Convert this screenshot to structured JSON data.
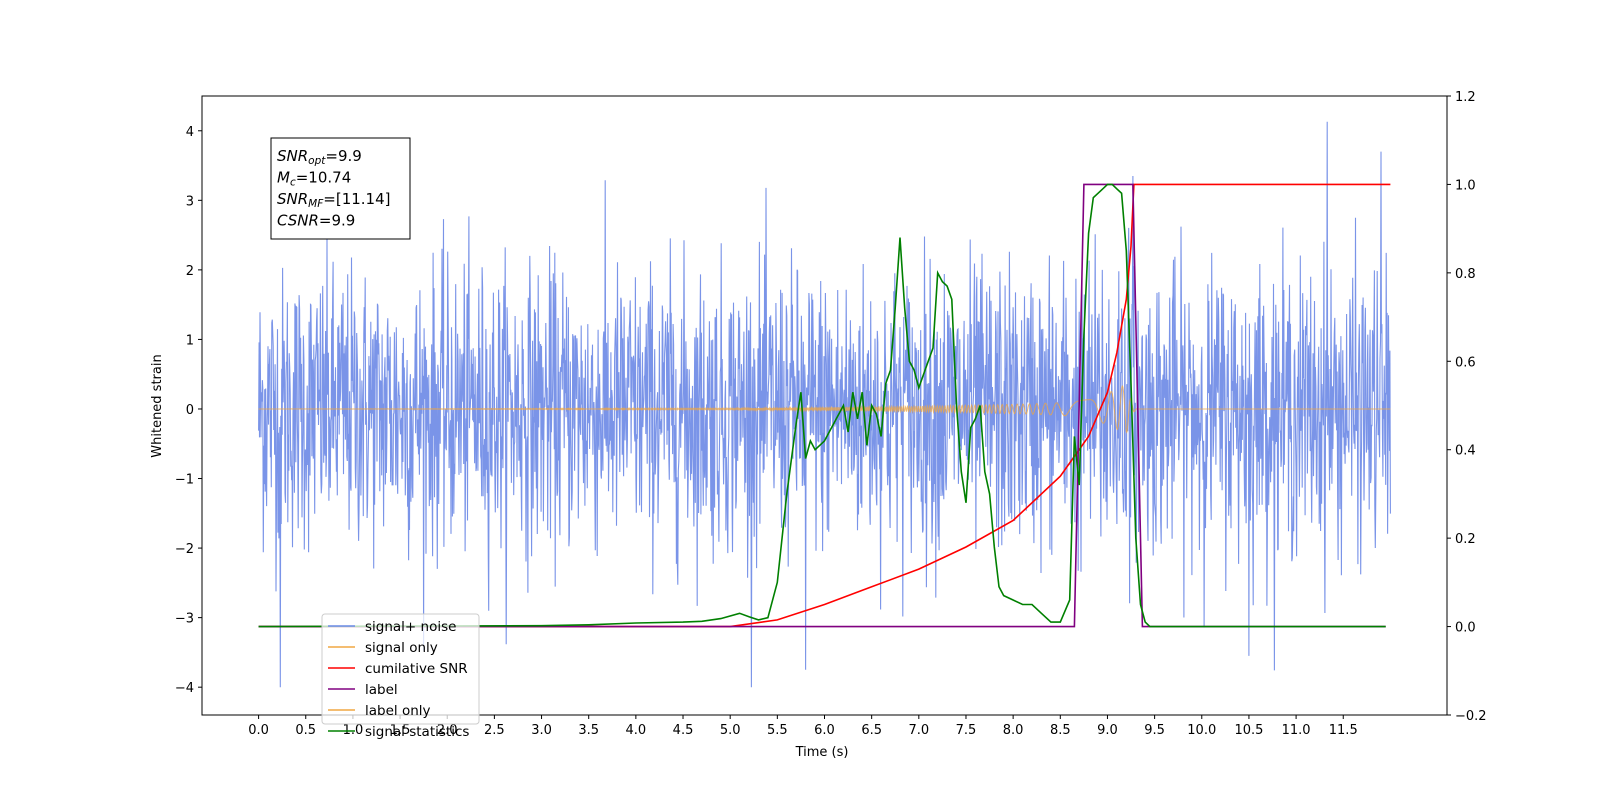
{
  "chart_data": {
    "type": "line",
    "xlabel": "Time (s)",
    "ylabel": "Whitened strain",
    "xlim": [
      -0.6,
      12.6
    ],
    "ylim": [
      -4.4,
      4.5
    ],
    "y2lim": [
      -0.2,
      1.2
    ],
    "x_ticks": [
      "0.0",
      "0.5",
      "1.0",
      "1.5",
      "2.0",
      "2.5",
      "3.0",
      "3.5",
      "4.0",
      "4.5",
      "5.0",
      "5.5",
      "6.0",
      "6.5",
      "7.0",
      "7.5",
      "8.0",
      "8.5",
      "9.0",
      "9.5",
      "10.0",
      "10.5",
      "11.0",
      "11.5"
    ],
    "y_ticks": [
      "4",
      "3",
      "2",
      "1",
      "0",
      "−1",
      "−2",
      "−3",
      "−4"
    ],
    "y2_ticks": [
      "1.2",
      "1.0",
      "0.8",
      "0.6",
      "0.4",
      "0.2",
      "0.0",
      "−0.2"
    ],
    "grid": false,
    "legend_position": "lower-left",
    "annotation": [
      {
        "sym": "SNR",
        "sub": "opt",
        "value": "=9.9"
      },
      {
        "sym": "M",
        "sub": "c",
        "value": "=10.74"
      },
      {
        "sym": "SNR",
        "sub": "MF",
        "value": "=[11.14]"
      },
      {
        "sym": "CSNR",
        "sub": "",
        "value": "=9.9"
      }
    ],
    "colors": {
      "noise": "#6b88e6",
      "signal": "#f0a742",
      "csnr": "#ff0000",
      "label": "#800080",
      "stats": "#008000"
    },
    "series": [
      {
        "name": "signal+ noise",
        "axis": "left",
        "color": "#6b88e6",
        "x_range": [
          0.0,
          12.0
        ],
        "y_range": [
          -4.0,
          4.13
        ],
        "notable_points": [
          [
            0.23,
            -4.0
          ],
          [
            11.33,
            4.13
          ],
          [
            5.8,
            -3.75
          ],
          [
            10.5,
            -3.55
          ],
          [
            11.9,
            3.7
          ],
          [
            9.27,
            3.35
          ]
        ]
      },
      {
        "name": "signal only",
        "axis": "left",
        "color": "#f0a742",
        "envelope": {
          "x": [
            0.0,
            5.0,
            6.0,
            7.0,
            8.0,
            8.5,
            8.8,
            9.0,
            9.2,
            9.25,
            9.3,
            12.0
          ],
          "amplitude": [
            0.0,
            0.02,
            0.05,
            0.09,
            0.15,
            0.2,
            0.3,
            0.5,
            0.8,
            0.3,
            0.0,
            0.0
          ]
        }
      },
      {
        "name": "cumilative SNR",
        "axis": "right",
        "color": "#ff0000",
        "x": [
          0.0,
          5.0,
          5.5,
          6.0,
          6.5,
          7.0,
          7.5,
          8.0,
          8.5,
          8.8,
          9.0,
          9.1,
          9.2,
          9.25,
          9.28,
          9.3,
          12.0
        ],
        "y": [
          0.0,
          0.0,
          0.015,
          0.05,
          0.09,
          0.13,
          0.18,
          0.24,
          0.34,
          0.43,
          0.53,
          0.62,
          0.74,
          0.86,
          1.0,
          1.0,
          1.0
        ]
      },
      {
        "name": "label",
        "axis": "right",
        "color": "#800080",
        "x": [
          0.0,
          8.65,
          8.75,
          9.27,
          9.37,
          11.95
        ],
        "y": [
          0.0,
          0.0,
          1.0,
          1.0,
          0.0,
          0.0
        ]
      },
      {
        "name": "signal statistics",
        "axis": "right",
        "color": "#008000",
        "x": [
          0.0,
          3.0,
          3.5,
          4.0,
          4.5,
          4.7,
          4.9,
          5.1,
          5.2,
          5.3,
          5.4,
          5.5,
          5.6,
          5.7,
          5.75,
          5.8,
          5.85,
          5.9,
          6.0,
          6.1,
          6.2,
          6.25,
          6.3,
          6.35,
          6.4,
          6.45,
          6.5,
          6.55,
          6.6,
          6.65,
          6.7,
          6.75,
          6.8,
          6.85,
          6.9,
          6.95,
          7.0,
          7.05,
          7.1,
          7.15,
          7.2,
          7.25,
          7.3,
          7.35,
          7.4,
          7.45,
          7.5,
          7.55,
          7.6,
          7.65,
          7.7,
          7.75,
          7.8,
          7.85,
          7.9,
          8.0,
          8.1,
          8.2,
          8.3,
          8.4,
          8.5,
          8.6,
          8.65,
          8.7,
          8.75,
          8.8,
          8.85,
          8.9,
          8.95,
          9.0,
          9.05,
          9.1,
          9.15,
          9.2,
          9.25,
          9.3,
          9.35,
          9.4,
          9.45,
          9.5,
          9.6,
          11.95
        ],
        "y": [
          0.0,
          0.002,
          0.004,
          0.008,
          0.01,
          0.012,
          0.018,
          0.03,
          0.022,
          0.015,
          0.02,
          0.1,
          0.3,
          0.46,
          0.53,
          0.38,
          0.42,
          0.4,
          0.42,
          0.46,
          0.5,
          0.44,
          0.53,
          0.47,
          0.53,
          0.41,
          0.5,
          0.48,
          0.43,
          0.55,
          0.58,
          0.72,
          0.88,
          0.72,
          0.6,
          0.58,
          0.54,
          0.57,
          0.6,
          0.63,
          0.8,
          0.78,
          0.77,
          0.74,
          0.5,
          0.35,
          0.28,
          0.45,
          0.47,
          0.5,
          0.35,
          0.3,
          0.18,
          0.09,
          0.07,
          0.06,
          0.05,
          0.05,
          0.03,
          0.01,
          0.01,
          0.06,
          0.43,
          0.32,
          0.66,
          0.89,
          0.97,
          0.98,
          0.99,
          1.0,
          1.0,
          0.99,
          0.98,
          0.85,
          0.55,
          0.2,
          0.05,
          0.01,
          0.0,
          0.0,
          0.0,
          0.0
        ]
      }
    ],
    "legend": [
      {
        "label": "signal+ noise",
        "color": "#6b88e6"
      },
      {
        "label": "signal only",
        "color": "#f0a742"
      },
      {
        "label": "cumilative SNR",
        "color": "#ff0000"
      },
      {
        "label": "label",
        "color": "#800080"
      },
      {
        "label": "label only",
        "color": "#f0a742"
      },
      {
        "label": "signal statistics",
        "color": "#008000"
      }
    ]
  }
}
